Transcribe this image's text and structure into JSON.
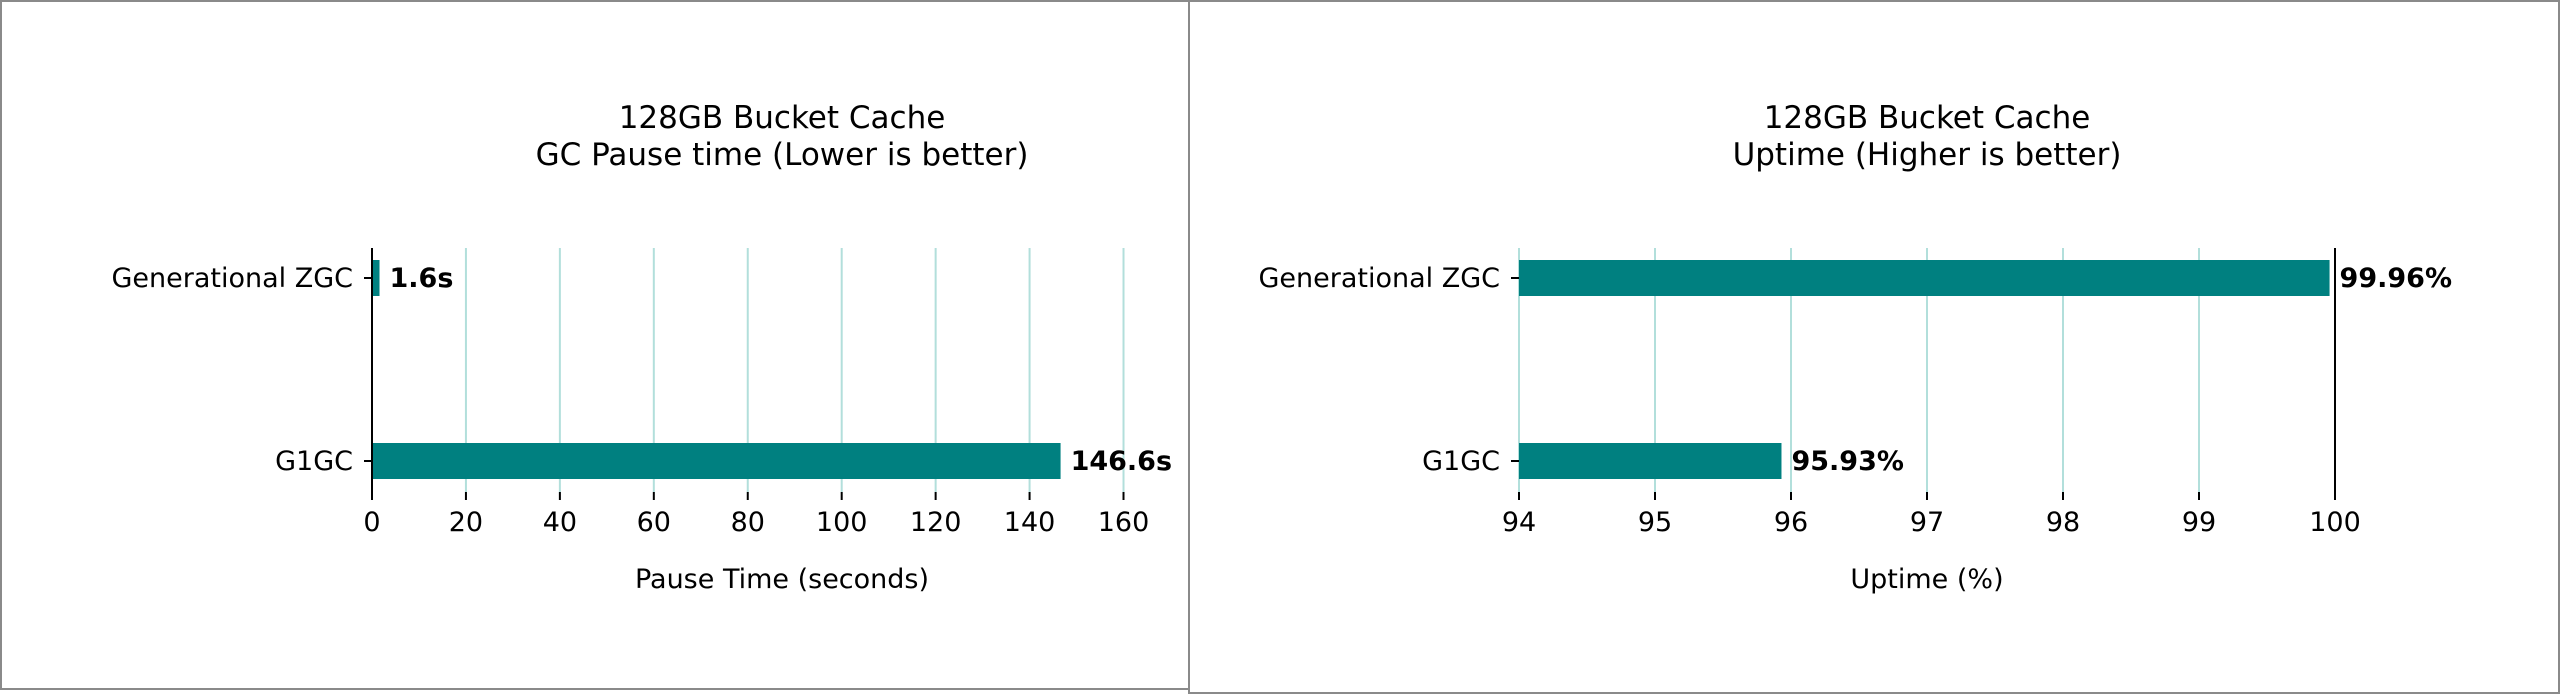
{
  "colors": {
    "bar": "#008080",
    "grid": "#b2dfdb",
    "axis": "#000000"
  },
  "chart_data": [
    {
      "type": "bar",
      "orientation": "horizontal",
      "title_lines": [
        "128GB Bucket Cache",
        "GC Pause time (Lower is better)"
      ],
      "categories": [
        "Generational ZGC",
        "G1GC"
      ],
      "values": [
        1.6,
        146.6
      ],
      "data_labels": [
        "1.6s",
        "146.6s"
      ],
      "xlabel": "Pause Time (seconds)",
      "ylabel": "",
      "xlim": [
        0,
        165
      ],
      "xticks": [
        0,
        20,
        40,
        60,
        80,
        100,
        120,
        140,
        160
      ],
      "grid": "vertical",
      "legend": "none"
    },
    {
      "type": "bar",
      "orientation": "horizontal",
      "title_lines": [
        "128GB Bucket Cache",
        "Uptime (Higher is better)"
      ],
      "categories": [
        "Generational ZGC",
        "G1GC"
      ],
      "values": [
        99.96,
        95.93
      ],
      "data_labels": [
        "99.96%",
        "95.93%"
      ],
      "xlabel": "Uptime (%)",
      "ylabel": "",
      "xlim": [
        94,
        100
      ],
      "xticks": [
        94,
        95,
        96,
        97,
        98,
        99,
        100
      ],
      "grid": "vertical",
      "legend": "none"
    }
  ]
}
